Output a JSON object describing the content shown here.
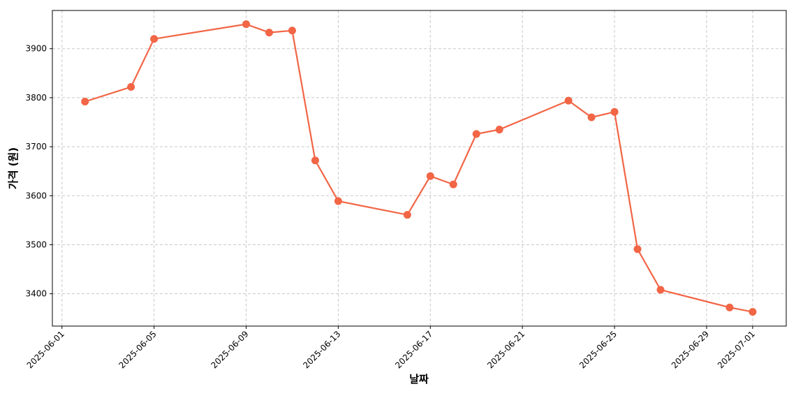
{
  "chart_data": {
    "type": "line",
    "xlabel": "날짜",
    "ylabel": "가격 (원)",
    "x": [
      "2025-06-02",
      "2025-06-04",
      "2025-06-05",
      "2025-06-09",
      "2025-06-10",
      "2025-06-11",
      "2025-06-12",
      "2025-06-13",
      "2025-06-16",
      "2025-06-17",
      "2025-06-18",
      "2025-06-19",
      "2025-06-20",
      "2025-06-23",
      "2025-06-24",
      "2025-06-25",
      "2025-06-26",
      "2025-06-27",
      "2025-06-30",
      "2025-07-01"
    ],
    "series": [
      {
        "color": "#f26545",
        "values": [
          3792,
          3822,
          3920,
          3950,
          3933,
          3937,
          3672,
          3589,
          3561,
          3640,
          3623,
          3726,
          3735,
          3794,
          3760,
          3771,
          3491,
          3408,
          3372,
          3363
        ]
      }
    ],
    "xlim": [
      "2025-05-31T14:00",
      "2025-07-02T11:00"
    ],
    "xticks": [
      "2025-06-01",
      "2025-06-05",
      "2025-06-09",
      "2025-06-13",
      "2025-06-17",
      "2025-06-21",
      "2025-06-25",
      "2025-06-29",
      "2025-07-01"
    ],
    "ylim": [
      3334,
      3978
    ],
    "yticks": [
      3400,
      3500,
      3600,
      3700,
      3800,
      3900
    ],
    "grid": true
  }
}
